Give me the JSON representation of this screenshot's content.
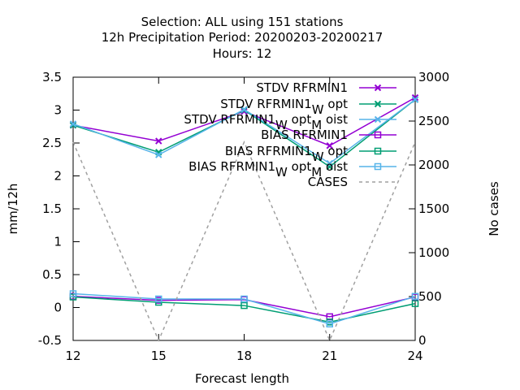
{
  "chart_data": {
    "type": "line",
    "title_lines": [
      "Selection: ALL using   151 stations",
      "12h Precipitation   Period: 20200203-20200217",
      "Hours:  12"
    ],
    "xlabel": "Forecast length",
    "ylabel": "mm/12h",
    "y2label": "No cases",
    "x": [
      12,
      15,
      18,
      21,
      24
    ],
    "xlim": [
      12,
      24
    ],
    "ylim": [
      -0.5,
      3.5
    ],
    "y2lim": [
      0,
      3000
    ],
    "xticks": [
      "12",
      "15",
      "18",
      "21",
      "24"
    ],
    "yticks": [
      "-0.5",
      "0",
      "0.5",
      "1",
      "1.5",
      "2",
      "2.5",
      "3",
      "3.5"
    ],
    "y2ticks": [
      "0",
      "500",
      "1000",
      "1500",
      "2000",
      "2500",
      "3000"
    ],
    "grid": false,
    "legend_position": "top-right",
    "series": [
      {
        "name": "STDV RFRMIN1",
        "label": [
          {
            "t": "STDV RFRMIN1"
          }
        ],
        "color": "#9400d3",
        "marker": "x",
        "axis": "y1",
        "dash": false,
        "values": [
          2.77,
          2.53,
          2.98,
          2.46,
          3.19
        ]
      },
      {
        "name": "STDV RFRMIN1_W opt",
        "label": [
          {
            "t": "STDV RFRMIN1"
          },
          {
            "t": "W",
            "sub": true
          },
          {
            "t": " opt"
          }
        ],
        "color": "#009e73",
        "marker": "x",
        "axis": "y1",
        "dash": false,
        "values": [
          2.77,
          2.36,
          3.0,
          2.14,
          3.16
        ]
      },
      {
        "name": "STDV RFRMIN1_W opt_M oist",
        "label": [
          {
            "t": "STDV RFRMIN1"
          },
          {
            "t": "W",
            "sub": true
          },
          {
            "t": " opt"
          },
          {
            "t": "M",
            "sub": true
          },
          {
            "t": " oist"
          }
        ],
        "color": "#56b4e9",
        "marker": "x",
        "axis": "y1",
        "dash": false,
        "values": [
          2.79,
          2.32,
          3.01,
          2.19,
          3.16
        ]
      },
      {
        "name": "BIAS RFRMIN1",
        "label": [
          {
            "t": "BIAS RFRMIN1"
          }
        ],
        "color": "#9400d3",
        "marker": "square",
        "axis": "y1",
        "dash": false,
        "values": [
          0.17,
          0.11,
          0.12,
          -0.14,
          0.16
        ]
      },
      {
        "name": "BIAS RFRMIN1_W opt",
        "label": [
          {
            "t": "BIAS RFRMIN1"
          },
          {
            "t": "W",
            "sub": true
          },
          {
            "t": " opt"
          }
        ],
        "color": "#009e73",
        "marker": "square",
        "axis": "y1",
        "dash": false,
        "values": [
          0.16,
          0.08,
          0.03,
          -0.22,
          0.06
        ]
      },
      {
        "name": "BIAS RFRMIN1_W opt_M oist",
        "label": [
          {
            "t": "BIAS RFRMIN1"
          },
          {
            "t": "W",
            "sub": true
          },
          {
            "t": " opt"
          },
          {
            "t": "M",
            "sub": true
          },
          {
            "t": " oist"
          }
        ],
        "color": "#56b4e9",
        "marker": "square",
        "axis": "y1",
        "dash": false,
        "values": [
          0.21,
          0.13,
          0.13,
          -0.25,
          0.17
        ]
      },
      {
        "name": "CASES",
        "label": [
          {
            "t": "CASES"
          }
        ],
        "color": "#a0a0a0",
        "marker": "none",
        "axis": "y2",
        "dash": true,
        "values": [
          2260,
          0,
          2260,
          0,
          2260
        ]
      }
    ]
  }
}
